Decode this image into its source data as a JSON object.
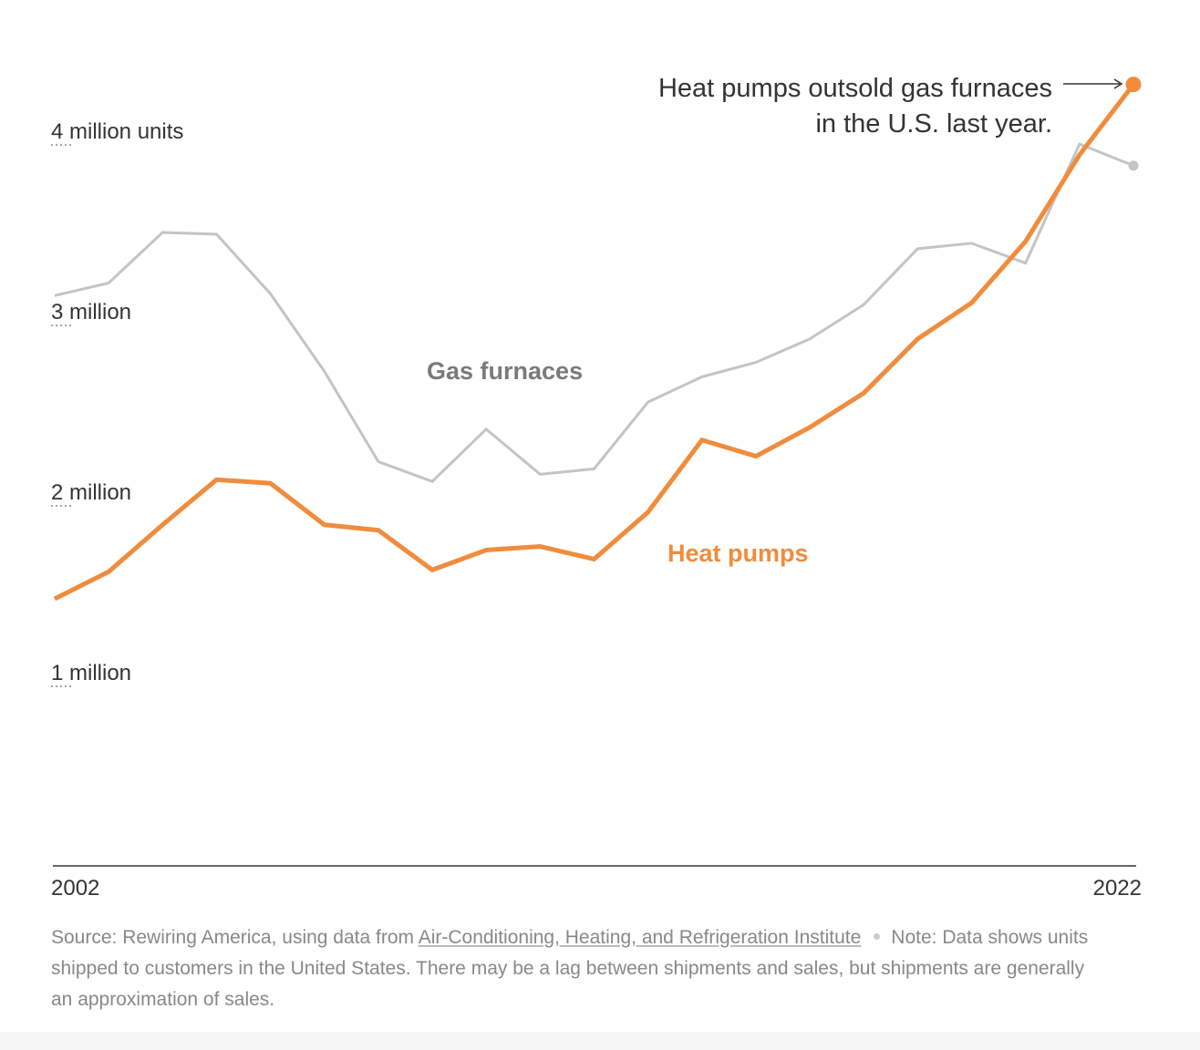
{
  "chart_data": {
    "type": "line",
    "title": "",
    "xlabel": "",
    "ylabel": "",
    "x": [
      2002,
      2003,
      2004,
      2005,
      2006,
      2007,
      2008,
      2009,
      2010,
      2011,
      2012,
      2013,
      2014,
      2015,
      2016,
      2017,
      2018,
      2019,
      2020,
      2021,
      2022
    ],
    "x_tick_labels": [
      "2002",
      "2022"
    ],
    "y_ticks": [
      {
        "value": 1000000,
        "label": "1 million"
      },
      {
        "value": 2000000,
        "label": "2 million"
      },
      {
        "value": 3000000,
        "label": "3 million"
      },
      {
        "value": 4000000,
        "label": "4 million units"
      }
    ],
    "xlim": [
      2002,
      2022
    ],
    "ylim": [
      0,
      4000000
    ],
    "grid": false,
    "series": [
      {
        "name": "Gas furnaces",
        "color": "#c4c4c4",
        "values": [
          3160000,
          3230000,
          3510000,
          3500000,
          3170000,
          2740000,
          2240000,
          2130000,
          2420000,
          2170000,
          2200000,
          2570000,
          2710000,
          2790000,
          2920000,
          3110000,
          3420000,
          3450000,
          3340000,
          4000000,
          3880000
        ]
      },
      {
        "name": "Heat pumps",
        "color": "#f08c3c",
        "values": [
          1480000,
          1630000,
          1890000,
          2140000,
          2120000,
          1890000,
          1860000,
          1640000,
          1750000,
          1770000,
          1700000,
          1960000,
          2360000,
          2270000,
          2430000,
          2620000,
          2920000,
          3120000,
          3460000,
          3940000,
          4330000
        ]
      }
    ],
    "annotation": {
      "lines": [
        "Heat pumps outsold gas furnaces",
        "in the U.S. last year."
      ]
    }
  },
  "source": {
    "prefix": "Source: Rewiring America, using data from ",
    "link_text": "Air-Conditioning, Heating, and Refrigeration Institute",
    "note": "Note: Data shows units shipped to customers in the United States. There may be a lag between shipments and sales, but shipments are generally an approximation of sales."
  }
}
